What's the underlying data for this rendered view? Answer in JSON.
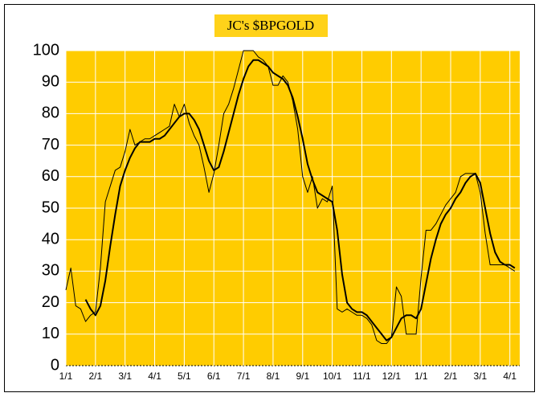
{
  "chart_data": {
    "type": "line",
    "title": "JC's $BPGOLD",
    "categories": [
      "1/1",
      null,
      null,
      null,
      null,
      null,
      "2/1",
      null,
      null,
      null,
      null,
      null,
      "3/1",
      null,
      null,
      null,
      null,
      null,
      "4/1",
      null,
      null,
      null,
      null,
      null,
      "5/1",
      null,
      null,
      null,
      null,
      null,
      "6/1",
      null,
      null,
      null,
      null,
      null,
      "7/1",
      null,
      null,
      null,
      null,
      null,
      "8/1",
      null,
      null,
      null,
      null,
      null,
      "9/1",
      null,
      null,
      null,
      null,
      null,
      "10/1",
      null,
      null,
      null,
      null,
      null,
      "11/1",
      null,
      null,
      null,
      null,
      null,
      "12/1",
      null,
      null,
      null,
      null,
      null,
      "1/1",
      null,
      null,
      null,
      null,
      null,
      "2/1",
      null,
      null,
      null,
      null,
      null,
      "3/1",
      null,
      null,
      null,
      null,
      null,
      "4/1",
      null
    ],
    "series": [
      {
        "color": "#000000",
        "values": [
          24,
          31,
          19,
          18,
          14,
          16,
          17,
          31,
          52,
          57,
          62,
          63,
          68,
          75,
          70,
          71,
          72,
          72,
          73,
          74,
          75,
          76,
          83,
          79,
          83,
          77,
          73,
          70,
          63,
          55,
          61,
          70,
          80,
          83,
          88,
          94,
          100,
          100,
          100,
          98,
          97,
          95,
          89,
          89,
          92,
          90,
          84,
          75,
          60,
          55,
          60,
          50,
          53,
          52,
          57,
          18,
          17,
          18,
          17,
          16,
          16,
          15,
          13,
          8,
          7,
          7,
          9,
          25,
          22,
          10,
          10,
          10,
          28,
          43,
          43,
          45,
          48,
          51,
          53,
          55,
          60,
          61,
          61,
          61,
          55,
          42,
          32,
          32,
          32,
          32,
          31,
          30
        ]
      },
      {
        "color": "#000000",
        "values": [
          null,
          null,
          null,
          null,
          21,
          18,
          16,
          19,
          27,
          38,
          48,
          57,
          62,
          66,
          69,
          71,
          71,
          71,
          72,
          72,
          73,
          75,
          77,
          79,
          80,
          80,
          78,
          75,
          70,
          65,
          62,
          63,
          68,
          74,
          80,
          86,
          91,
          95,
          97,
          97,
          96,
          95,
          93,
          92,
          91,
          89,
          85,
          79,
          72,
          64,
          59,
          55,
          54,
          53,
          52,
          43,
          29,
          20,
          18,
          17,
          17,
          16,
          14,
          12,
          10,
          8,
          9,
          12,
          15,
          16,
          16,
          15,
          18,
          26,
          34,
          40,
          45,
          48,
          50,
          53,
          55,
          58,
          60,
          61,
          58,
          50,
          42,
          36,
          33,
          32,
          32,
          31
        ]
      }
    ],
    "ylim": [
      0,
      100
    ],
    "yticks": [
      0,
      10,
      20,
      30,
      40,
      50,
      60,
      70,
      80,
      90,
      100
    ],
    "grid": true
  }
}
